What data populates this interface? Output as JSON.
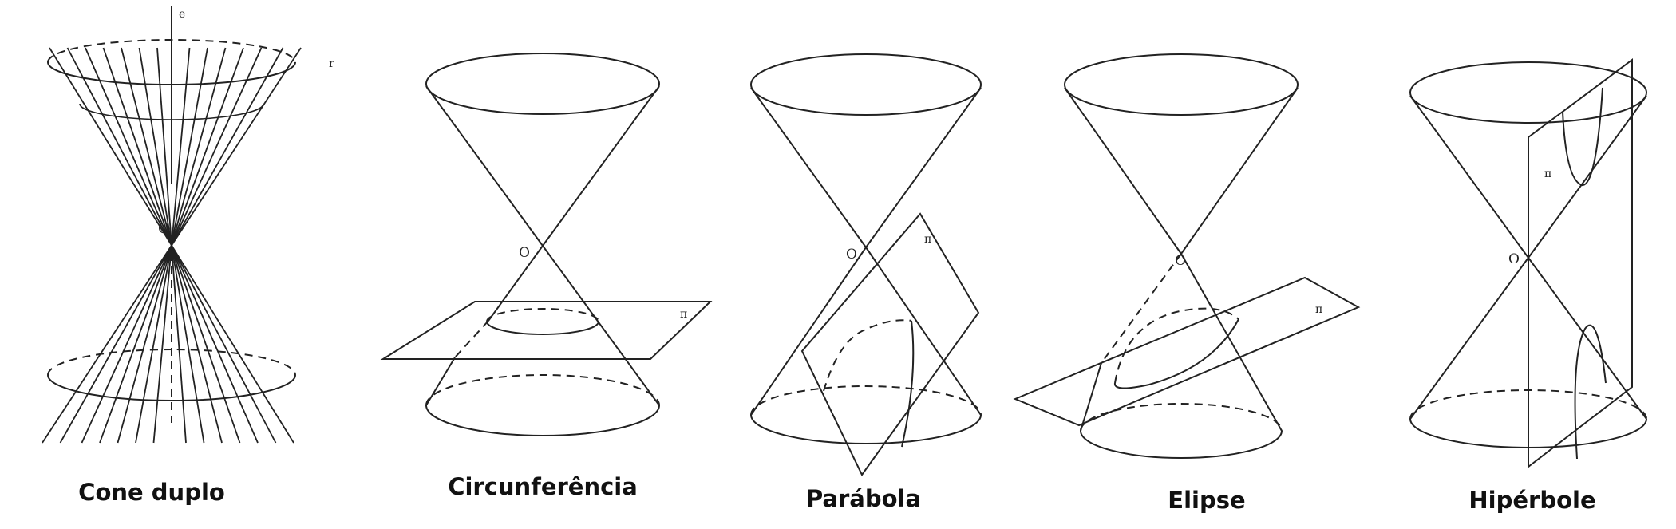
{
  "figures": [
    {
      "id": "cone-duplo",
      "caption": "Cone duplo",
      "labels": {
        "vertex": "O",
        "axis": "e",
        "generatrix": "r"
      }
    },
    {
      "id": "circunferencia",
      "caption": "Circunferência",
      "labels": {
        "vertex": "O",
        "plane": "π"
      }
    },
    {
      "id": "parabola",
      "caption": "Parábola",
      "labels": {
        "vertex": "O",
        "plane": "π"
      }
    },
    {
      "id": "elipse",
      "caption": "Elipse",
      "labels": {
        "vertex": "O",
        "plane": "π"
      }
    },
    {
      "id": "hiperbole",
      "caption": "Hipérbole",
      "labels": {
        "vertex": "O",
        "plane": "π"
      }
    }
  ]
}
